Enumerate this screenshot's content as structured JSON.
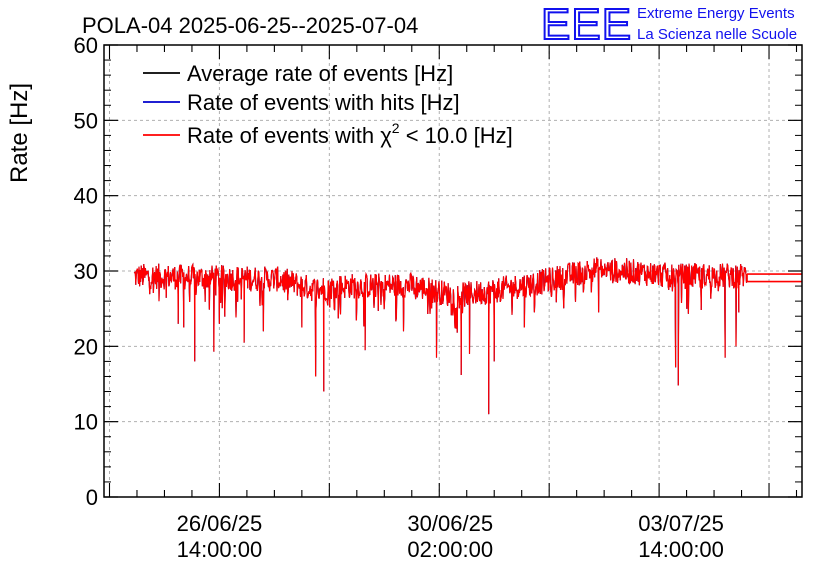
{
  "title": "POLA-04 2025-06-25--2025-07-04",
  "logo": {
    "mark": "EEE",
    "line1": "Extreme Energy Events",
    "line2": "La Scienza nelle Scuole",
    "color": "#1111ee"
  },
  "chart_data": {
    "type": "line",
    "title": "POLA-04 2025-06-25--2025-07-04",
    "xlabel": "",
    "ylabel": "Rate [Hz]",
    "ylim": [
      0,
      60
    ],
    "xlim": [
      "2025-06-24T20:00:00",
      "2025-07-05T10:00:00"
    ],
    "grid": true,
    "legend_position": "top-left",
    "y_ticks": [
      "0",
      "10",
      "20",
      "30",
      "40",
      "50",
      "60"
    ],
    "x_ticks": [
      {
        "at": "2025-06-26T14:00:00",
        "line1": "26/06/25",
        "line2": "14:00:00"
      },
      {
        "at": "2025-06-30T02:00:00",
        "line1": "30/06/25",
        "line2": "02:00:00"
      },
      {
        "at": "2025-07-03T14:00:00",
        "line1": "03/07/25",
        "line2": "14:00:00"
      }
    ],
    "series": [
      {
        "name": "Average rate of events [Hz]",
        "color": "#000000",
        "level": 29.1
      },
      {
        "name": "Rate of events with hits [Hz]",
        "color": "#0000cc",
        "level": 29.1
      },
      {
        "name": "Rate of events with χ² < 10.0 [Hz]",
        "color": "#ff0000",
        "level": 29.1
      }
    ],
    "legend": [
      {
        "text": "Average rate of events [Hz]",
        "color": "#000000"
      },
      {
        "text": "Rate of events with hits [Hz]",
        "color": "#0000cc"
      },
      {
        "text_before": "Rate of events with ",
        "chi": "χ",
        "sup": "2",
        "text_after": " < 10.0 [Hz]",
        "color": "#ff0000"
      }
    ],
    "trend": [
      {
        "x": "2025-06-25T12:00:00",
        "y": 29.3
      },
      {
        "x": "2025-06-26T12:00:00",
        "y": 29.1
      },
      {
        "x": "2025-06-27T12:00:00",
        "y": 28.9
      },
      {
        "x": "2025-06-28T00:00:00",
        "y": 27.6
      },
      {
        "x": "2025-06-28T12:00:00",
        "y": 28.0
      },
      {
        "x": "2025-06-29T12:00:00",
        "y": 28.1
      },
      {
        "x": "2025-06-30T04:00:00",
        "y": 26.7
      },
      {
        "x": "2025-06-30T18:00:00",
        "y": 27.4
      },
      {
        "x": "2025-07-01T12:00:00",
        "y": 28.6
      },
      {
        "x": "2025-07-02T06:00:00",
        "y": 30.2
      },
      {
        "x": "2025-07-02T18:00:00",
        "y": 30.0
      },
      {
        "x": "2025-07-03T12:00:00",
        "y": 29.3
      },
      {
        "x": "2025-07-04T12:00:00",
        "y": 29.4
      }
    ],
    "dips": [
      {
        "x": "2025-06-25T16:00:00",
        "y": 26.0
      },
      {
        "x": "2025-06-25T23:00:00",
        "y": 23.0
      },
      {
        "x": "2025-06-26T01:00:00",
        "y": 22.5
      },
      {
        "x": "2025-06-26T05:00:00",
        "y": 21.5
      },
      {
        "x": "2025-06-26T14:00:00",
        "y": 23.0
      },
      {
        "x": "2025-06-26T05:00:00",
        "y": 18.0
      },
      {
        "x": "2025-06-26T23:00:00",
        "y": 20.5
      },
      {
        "x": "2025-06-26T12:00:00",
        "y": 19.3
      },
      {
        "x": "2025-06-27T06:00:00",
        "y": 22.0
      },
      {
        "x": "2025-06-27T20:00:00",
        "y": 22.5
      },
      {
        "x": "2025-06-28T01:00:00",
        "y": 16.0
      },
      {
        "x": "2025-06-28T04:00:00",
        "y": 14.0
      },
      {
        "x": "2025-06-28T19:00:00",
        "y": 19.5
      },
      {
        "x": "2025-06-29T09:00:00",
        "y": 22.0
      },
      {
        "x": "2025-06-29T21:00:00",
        "y": 18.5
      },
      {
        "x": "2025-06-30T06:00:00",
        "y": 16.2
      },
      {
        "x": "2025-06-30T09:00:00",
        "y": 19.0
      },
      {
        "x": "2025-06-30T16:00:00",
        "y": 11.0
      },
      {
        "x": "2025-06-30T18:00:00",
        "y": 18.0
      },
      {
        "x": "2025-07-01T05:00:00",
        "y": 22.5
      },
      {
        "x": "2025-07-02T08:00:00",
        "y": 24.5
      },
      {
        "x": "2025-07-03T12:00:00",
        "y": 17.2
      },
      {
        "x": "2025-07-03T13:00:00",
        "y": 14.8
      },
      {
        "x": "2025-07-04T06:00:00",
        "y": 18.5
      },
      {
        "x": "2025-07-04T10:00:00",
        "y": 20.0
      },
      {
        "x": "2025-07-04T11:00:00",
        "y": 24.5
      }
    ],
    "tail": {
      "x_from": "2025-07-04T14:00:00",
      "y_top": 29.6,
      "y_bottom": 28.6
    }
  }
}
